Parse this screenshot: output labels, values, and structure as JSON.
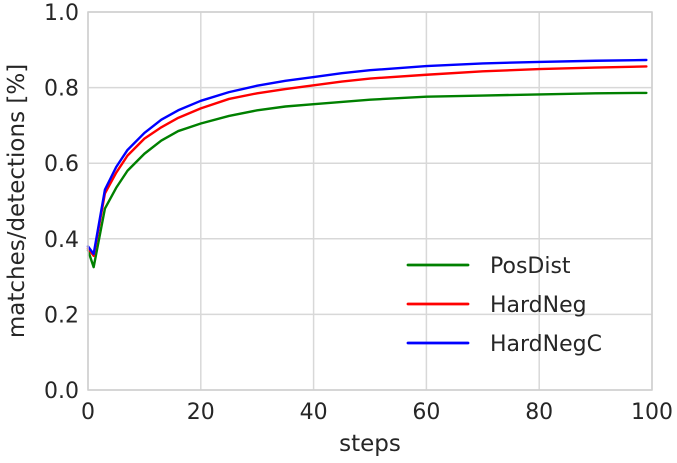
{
  "chart_data": {
    "type": "line",
    "title": "",
    "xlabel": "steps",
    "ylabel": "matches/detections [%]",
    "xlim": [
      0,
      100
    ],
    "ylim": [
      0.0,
      1.0
    ],
    "x_ticks": [
      "0",
      "20",
      "40",
      "60",
      "80",
      "100"
    ],
    "y_ticks": [
      "0.0",
      "0.2",
      "0.4",
      "0.6",
      "0.8",
      "1.0"
    ],
    "grid": true,
    "legend_position": "lower right",
    "x": [
      0,
      1,
      3,
      5,
      7,
      10,
      13,
      16,
      20,
      25,
      30,
      35,
      40,
      45,
      50,
      60,
      70,
      80,
      90,
      99
    ],
    "series": [
      {
        "name": "PosDist",
        "color": "#008000",
        "values": [
          0.37,
          0.325,
          0.48,
          0.535,
          0.58,
          0.625,
          0.66,
          0.685,
          0.705,
          0.725,
          0.74,
          0.75,
          0.756,
          0.762,
          0.768,
          0.776,
          0.779,
          0.782,
          0.785,
          0.786
        ]
      },
      {
        "name": "HardNeg",
        "color": "#ff0000",
        "values": [
          0.375,
          0.355,
          0.52,
          0.575,
          0.62,
          0.665,
          0.695,
          0.72,
          0.745,
          0.77,
          0.785,
          0.796,
          0.806,
          0.816,
          0.824,
          0.834,
          0.843,
          0.849,
          0.853,
          0.856
        ]
      },
      {
        "name": "HardNegC",
        "color": "#0000ff",
        "values": [
          0.38,
          0.36,
          0.53,
          0.59,
          0.635,
          0.68,
          0.715,
          0.74,
          0.765,
          0.788,
          0.805,
          0.818,
          0.828,
          0.838,
          0.846,
          0.857,
          0.864,
          0.868,
          0.871,
          0.873
        ]
      }
    ]
  }
}
